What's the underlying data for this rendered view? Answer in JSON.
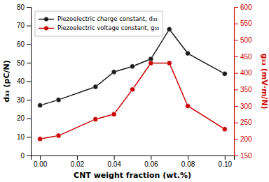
{
  "chart_data": {
    "type": "line",
    "xlabel": "CNT weight fraction (wt.%)",
    "ylabel": "d₃₃ (pC/N)",
    "y2label": "g₃₃  (mV·m/N)",
    "x": [
      0.0,
      0.01,
      0.03,
      0.04,
      0.05,
      0.06,
      0.07,
      0.08,
      0.1
    ],
    "series": [
      {
        "name": "Piezoelectric charge constant, d₃₃",
        "color": "#1a1a1a",
        "axis": "y",
        "values": [
          27,
          30,
          37,
          45,
          48,
          52,
          68,
          55,
          44
        ]
      },
      {
        "name": "Piezoelectric voltage constant, g₃₃",
        "color": "#cc0000",
        "axis": "y2",
        "values": [
          200,
          210,
          260,
          275,
          350,
          430,
          430,
          300,
          230
        ]
      }
    ],
    "xlim": [
      -0.005,
      0.105
    ],
    "xticks": [
      {
        "value": 0.0,
        "label": "0.00"
      },
      0.02,
      0.04,
      0.06,
      0.08,
      {
        "value": 0.1,
        "label": "0.10"
      }
    ],
    "ylim": [
      0,
      80
    ],
    "yticks": [
      0,
      10,
      20,
      30,
      40,
      50,
      60,
      70,
      80
    ],
    "y2lim": [
      150,
      600
    ],
    "y2ticks": [
      150,
      200,
      250,
      300,
      350,
      400,
      450,
      500,
      550,
      600
    ],
    "marker": "circle",
    "legend": "upper left",
    "grid": false
  }
}
